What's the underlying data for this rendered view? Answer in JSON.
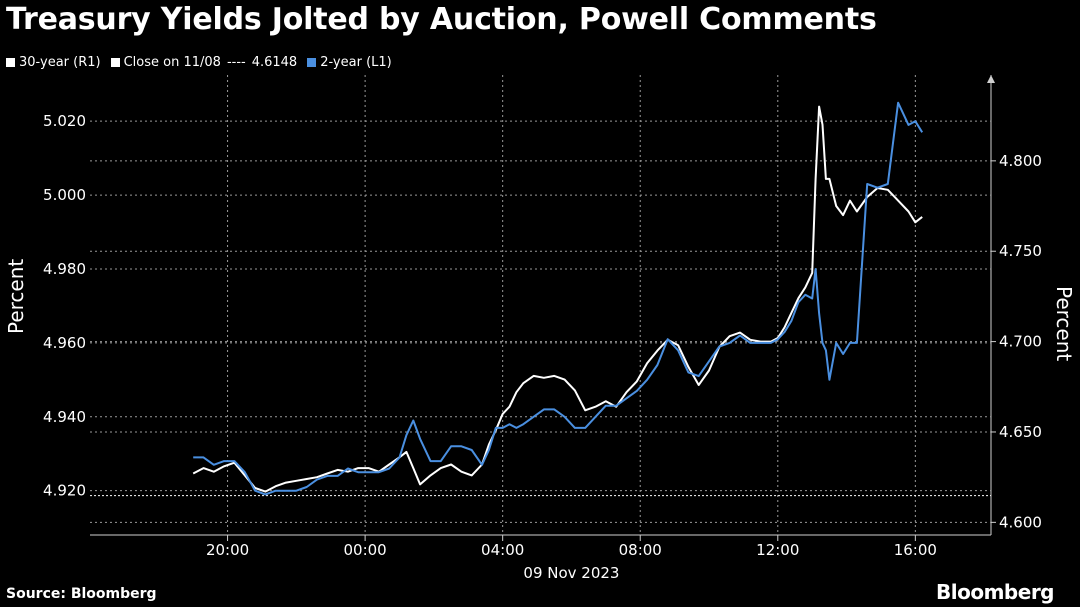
{
  "chart_data": {
    "type": "line",
    "title": "Treasury Yields Jolted by Auction, Powell Comments",
    "legend": {
      "series_30y": "30-year (R1)",
      "close_label": "Close on 11/08",
      "close_value_text": "4.6148",
      "series_2y": "2-year (L1)"
    },
    "xlabel": "09 Nov 2023",
    "x_ticks": [
      "20:00",
      "00:00",
      "04:00",
      "08:00",
      "12:00",
      "16:00"
    ],
    "x_tick_hours": [
      20,
      24,
      28,
      32,
      36,
      40
    ],
    "xlim_hours": [
      16.0,
      42.2
    ],
    "left_axis": {
      "label": "Percent",
      "ylim": [
        4.908,
        5.0325
      ],
      "ticks": [
        4.92,
        4.94,
        4.96,
        4.98,
        5.0,
        5.02
      ],
      "tick_labels": [
        "4.920",
        "4.940",
        "4.960",
        "4.980",
        "5.000",
        "5.020"
      ]
    },
    "right_axis": {
      "label": "Percent",
      "ylim": [
        4.593,
        4.8475
      ],
      "ticks": [
        4.6,
        4.65,
        4.7,
        4.75,
        4.8
      ],
      "tick_labels": [
        "4.600",
        "4.650",
        "4.700",
        "4.750",
        "4.800"
      ]
    },
    "reference_line": {
      "axis": "right",
      "value": 4.6148,
      "label": "Close on 11/08"
    },
    "series": [
      {
        "name": "30-year (R1)",
        "axis": "right",
        "color": "#ffffff",
        "x_hours": [
          19.0,
          19.3,
          19.6,
          19.9,
          20.2,
          20.5,
          20.8,
          21.1,
          21.4,
          21.7,
          22.0,
          22.3,
          22.6,
          22.9,
          23.2,
          23.5,
          23.8,
          24.1,
          24.4,
          24.7,
          25.0,
          25.2,
          25.4,
          25.6,
          25.9,
          26.2,
          26.5,
          26.8,
          27.1,
          27.4,
          27.6,
          27.8,
          28.0,
          28.2,
          28.4,
          28.6,
          28.9,
          29.2,
          29.5,
          29.8,
          30.1,
          30.4,
          30.7,
          31.0,
          31.3,
          31.6,
          31.9,
          32.2,
          32.5,
          32.8,
          33.1,
          33.4,
          33.7,
          34.0,
          34.3,
          34.6,
          34.9,
          35.2,
          35.5,
          35.8,
          36.0,
          36.2,
          36.4,
          36.6,
          36.8,
          37.0,
          37.1,
          37.2,
          37.3,
          37.4,
          37.5,
          37.7,
          37.9,
          38.1,
          38.3,
          38.6,
          38.9,
          39.2,
          39.5,
          39.8,
          40.0,
          40.2
        ],
        "values": [
          4.627,
          4.63,
          4.628,
          4.631,
          4.633,
          4.626,
          4.619,
          4.617,
          4.62,
          4.622,
          4.623,
          4.624,
          4.625,
          4.627,
          4.629,
          4.628,
          4.63,
          4.63,
          4.628,
          4.632,
          4.636,
          4.639,
          4.63,
          4.621,
          4.626,
          4.63,
          4.632,
          4.628,
          4.626,
          4.632,
          4.643,
          4.651,
          4.66,
          4.664,
          4.672,
          4.677,
          4.681,
          4.68,
          4.681,
          4.679,
          4.673,
          4.662,
          4.664,
          4.667,
          4.664,
          4.672,
          4.678,
          4.688,
          4.695,
          4.701,
          4.698,
          4.686,
          4.676,
          4.684,
          4.697,
          4.703,
          4.705,
          4.701,
          4.7,
          4.7,
          4.702,
          4.708,
          4.716,
          4.724,
          4.73,
          4.738,
          4.79,
          4.83,
          4.82,
          4.79,
          4.79,
          4.775,
          4.77,
          4.778,
          4.772,
          4.78,
          4.785,
          4.784,
          4.778,
          4.772,
          4.766,
          4.769
        ]
      },
      {
        "name": "2-year (L1)",
        "axis": "left",
        "color": "#4a8fe0",
        "x_hours": [
          19.0,
          19.3,
          19.6,
          19.9,
          20.2,
          20.5,
          20.8,
          21.1,
          21.4,
          21.7,
          22.0,
          22.3,
          22.6,
          22.9,
          23.2,
          23.5,
          23.8,
          24.1,
          24.4,
          24.7,
          25.0,
          25.2,
          25.4,
          25.6,
          25.9,
          26.2,
          26.5,
          26.8,
          27.1,
          27.4,
          27.6,
          27.8,
          28.0,
          28.2,
          28.4,
          28.6,
          28.9,
          29.2,
          29.5,
          29.8,
          30.1,
          30.4,
          30.7,
          31.0,
          31.3,
          31.6,
          31.9,
          32.2,
          32.5,
          32.8,
          33.1,
          33.4,
          33.7,
          34.0,
          34.3,
          34.6,
          34.9,
          35.2,
          35.5,
          35.8,
          36.0,
          36.2,
          36.4,
          36.6,
          36.8,
          37.0,
          37.1,
          37.2,
          37.3,
          37.4,
          37.5,
          37.7,
          37.9,
          38.1,
          38.3,
          38.6,
          38.9,
          39.2,
          39.5,
          39.8,
          40.0,
          40.2
        ],
        "values": [
          4.929,
          4.929,
          4.927,
          4.928,
          4.928,
          4.925,
          4.92,
          4.919,
          4.92,
          4.92,
          4.92,
          4.921,
          4.923,
          4.924,
          4.924,
          4.926,
          4.925,
          4.925,
          4.925,
          4.926,
          4.929,
          4.935,
          4.939,
          4.934,
          4.928,
          4.928,
          4.932,
          4.932,
          4.931,
          4.927,
          4.931,
          4.937,
          4.937,
          4.938,
          4.937,
          4.938,
          4.94,
          4.942,
          4.942,
          4.94,
          4.937,
          4.937,
          4.94,
          4.943,
          4.943,
          4.945,
          4.947,
          4.95,
          4.954,
          4.961,
          4.958,
          4.952,
          4.951,
          4.955,
          4.959,
          4.96,
          4.962,
          4.96,
          4.96,
          4.96,
          4.961,
          4.963,
          4.966,
          4.971,
          4.973,
          4.972,
          4.98,
          4.968,
          4.96,
          4.958,
          4.95,
          4.96,
          4.957,
          4.96,
          4.96,
          5.003,
          5.002,
          5.003,
          5.025,
          5.019,
          5.02,
          5.017
        ]
      }
    ]
  },
  "footer": {
    "source": "Source: Bloomberg",
    "brand": "Bloomberg"
  },
  "colors": {
    "background": "#000000",
    "text": "#ffffff",
    "grid": "#9a9a9a",
    "series_30y": "#ffffff",
    "series_2y": "#4a8fe0"
  }
}
